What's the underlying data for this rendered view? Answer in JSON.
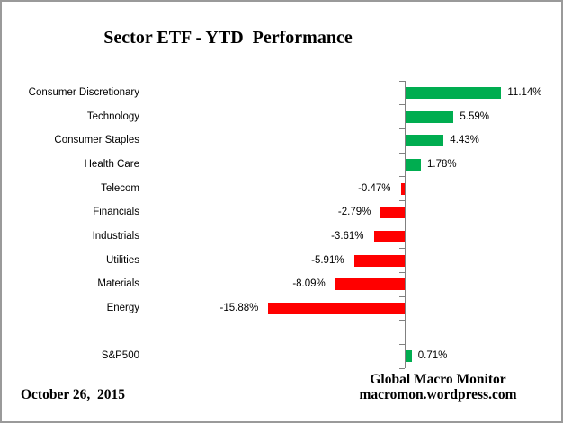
{
  "title": "Sector ETF - YTD  Performance",
  "footer": {
    "date": "October 26,  2015",
    "source_line1": "Global Macro Monitor",
    "source_line2": "macromon.wordpress.com"
  },
  "chart_data": {
    "type": "bar",
    "orientation": "horizontal",
    "title": "Sector ETF - YTD  Performance",
    "xlabel": "",
    "ylabel": "",
    "xlim": [
      -16.5,
      12
    ],
    "grid": false,
    "categories": [
      "Consumer Discretionary",
      "Technology",
      "Consumer Staples",
      "Health Care",
      "Telecom",
      "Financials",
      "Industrials",
      "Utilities",
      "Materials",
      "Energy",
      "",
      "S&P500"
    ],
    "values": [
      11.14,
      5.59,
      4.43,
      1.78,
      -0.47,
      -2.79,
      -3.61,
      -5.91,
      -8.09,
      -15.88,
      null,
      0.71
    ],
    "value_labels": [
      "11.14%",
      "5.59%",
      "4.43%",
      "1.78%",
      "-0.47%",
      "-2.79%",
      "-3.61%",
      "-5.91%",
      "-8.09%",
      "-15.88%",
      "",
      "0.71%"
    ],
    "positive_color": "#00AD50",
    "negative_color": "#FF0000",
    "axis_color": "#808080"
  }
}
